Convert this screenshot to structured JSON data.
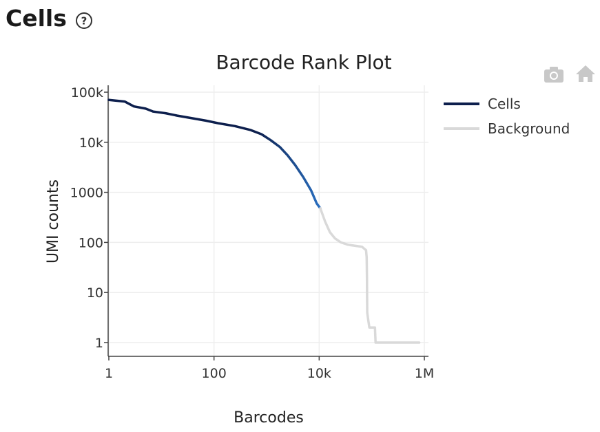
{
  "header": {
    "title": "Cells",
    "help_icon": "question-circle-icon"
  },
  "toolbar": {
    "camera_icon": "camera-icon",
    "home_icon": "home-icon"
  },
  "chart_data": {
    "type": "line",
    "title": "Barcode Rank Plot",
    "xlabel": "Barcodes",
    "ylabel": "UMI counts",
    "xscale": "log",
    "yscale": "log",
    "xlim": [
      1,
      1000000
    ],
    "ylim": [
      1,
      100000
    ],
    "xticks": [
      {
        "value": 1,
        "label": "1"
      },
      {
        "value": 100,
        "label": "100"
      },
      {
        "value": 10000,
        "label": "10k"
      },
      {
        "value": 1000000,
        "label": "1M"
      }
    ],
    "yticks": [
      {
        "value": 1,
        "label": "1"
      },
      {
        "value": 10,
        "label": "10"
      },
      {
        "value": 100,
        "label": "100"
      },
      {
        "value": 1000,
        "label": "1000"
      },
      {
        "value": 10000,
        "label": "10k"
      },
      {
        "value": 100000,
        "label": "100k"
      }
    ],
    "grid": true,
    "legend_position": "right",
    "series": [
      {
        "name": "Cells",
        "color": "#0d1f4d",
        "color_end": "#2a6fc0",
        "points": [
          [
            1,
            70000
          ],
          [
            2,
            65000
          ],
          [
            3,
            52000
          ],
          [
            5,
            47000
          ],
          [
            7,
            41000
          ],
          [
            12,
            38000
          ],
          [
            20,
            34000
          ],
          [
            40,
            30000
          ],
          [
            70,
            27000
          ],
          [
            120,
            24000
          ],
          [
            250,
            21000
          ],
          [
            500,
            17500
          ],
          [
            800,
            14500
          ],
          [
            1200,
            11000
          ],
          [
            1800,
            8000
          ],
          [
            2500,
            5500
          ],
          [
            3500,
            3500
          ],
          [
            5000,
            2000
          ],
          [
            7000,
            1100
          ],
          [
            9000,
            600
          ],
          [
            10500,
            480
          ]
        ]
      },
      {
        "name": "Background",
        "color": "#d9d9d9",
        "points": [
          [
            10500,
            480
          ],
          [
            13000,
            260
          ],
          [
            16000,
            160
          ],
          [
            20000,
            120
          ],
          [
            26000,
            100
          ],
          [
            35000,
            90
          ],
          [
            50000,
            85
          ],
          [
            65000,
            82
          ],
          [
            78000,
            70
          ],
          [
            80000,
            50
          ],
          [
            81000,
            20
          ],
          [
            81500,
            8
          ],
          [
            82000,
            4
          ],
          [
            85000,
            3
          ],
          [
            90000,
            2
          ],
          [
            115000,
            2
          ],
          [
            118000,
            1
          ],
          [
            200000,
            1
          ],
          [
            800000,
            1
          ]
        ]
      }
    ]
  }
}
